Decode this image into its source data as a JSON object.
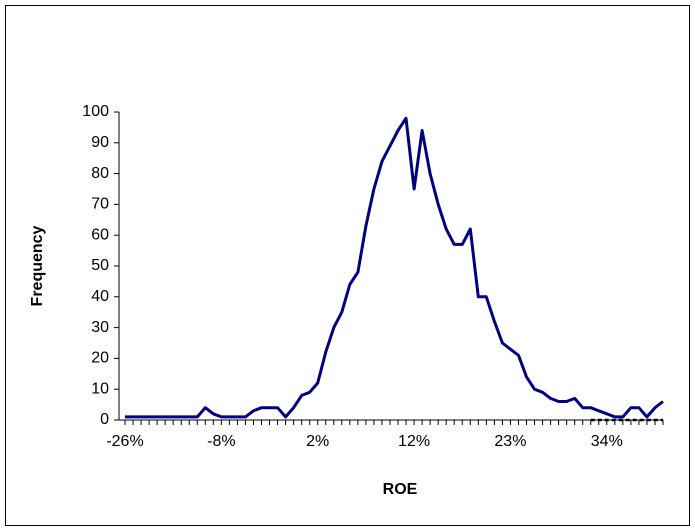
{
  "chart_data": {
    "type": "line",
    "x_label": "ROE",
    "y_label": "Frequency",
    "categories": [
      "-26%",
      null,
      null,
      null,
      null,
      null,
      null,
      null,
      null,
      null,
      null,
      null,
      "-8%",
      null,
      null,
      null,
      null,
      null,
      null,
      null,
      null,
      null,
      null,
      null,
      "2%",
      null,
      null,
      null,
      null,
      null,
      null,
      null,
      null,
      null,
      null,
      null,
      "12%",
      null,
      null,
      null,
      null,
      null,
      null,
      null,
      null,
      null,
      null,
      null,
      "23%",
      null,
      null,
      null,
      null,
      null,
      null,
      null,
      null,
      null,
      null,
      null,
      "34%",
      null,
      null,
      null,
      null,
      null,
      null,
      null
    ],
    "series": [
      {
        "color": "#000080",
        "dashed": false,
        "values": [
          1,
          1,
          1,
          1,
          1,
          1,
          1,
          1,
          1,
          1,
          4,
          2,
          1,
          1,
          1,
          1,
          3,
          4,
          4,
          4,
          1,
          4,
          8,
          9,
          12,
          22,
          30,
          35,
          44,
          48,
          63,
          75,
          84,
          89,
          94,
          98,
          75,
          94,
          80,
          70,
          62,
          57,
          57,
          62,
          40,
          40,
          32,
          25,
          23,
          21,
          14,
          10,
          9,
          7,
          6,
          6,
          7,
          4,
          4,
          3,
          2,
          1,
          1,
          4,
          4,
          1,
          4,
          6
        ]
      },
      {
        "color": "#000000",
        "dashed": true,
        "values": [
          null,
          null,
          null,
          null,
          null,
          null,
          null,
          null,
          null,
          null,
          null,
          null,
          null,
          null,
          null,
          null,
          null,
          null,
          null,
          null,
          null,
          null,
          null,
          null,
          null,
          null,
          null,
          null,
          null,
          null,
          null,
          null,
          null,
          null,
          null,
          null,
          null,
          null,
          null,
          null,
          null,
          null,
          null,
          null,
          null,
          null,
          null,
          null,
          null,
          null,
          null,
          null,
          null,
          null,
          null,
          null,
          null,
          null,
          0,
          0,
          0,
          0,
          0,
          0,
          0,
          0,
          0,
          0
        ]
      }
    ],
    "ylim": [
      0,
      100
    ],
    "yticks": [
      0,
      10,
      20,
      30,
      40,
      50,
      60,
      70,
      80,
      90,
      100
    ],
    "grid": false
  }
}
